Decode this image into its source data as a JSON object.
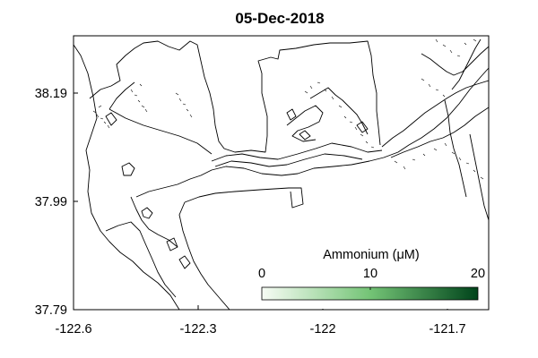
{
  "title": "05-Dec-2018",
  "map": {
    "x_ticks": [
      "-122.6",
      "-122.3",
      "-122",
      "-121.7"
    ],
    "y_ticks": [
      "38.19",
      "37.99",
      "37.79"
    ],
    "lon_range": [
      -122.6,
      -121.6
    ],
    "lat_range": [
      37.79,
      38.3
    ],
    "coastline_color": "#000000",
    "background": "#ffffff"
  },
  "colorbar": {
    "label": "Ammonium (μM)",
    "ticks": [
      "0",
      "10",
      "20"
    ],
    "range": [
      0,
      20
    ],
    "color_low": "#f7fcf5",
    "color_high": "#00441b",
    "placement": "bottom-right inside map"
  }
}
